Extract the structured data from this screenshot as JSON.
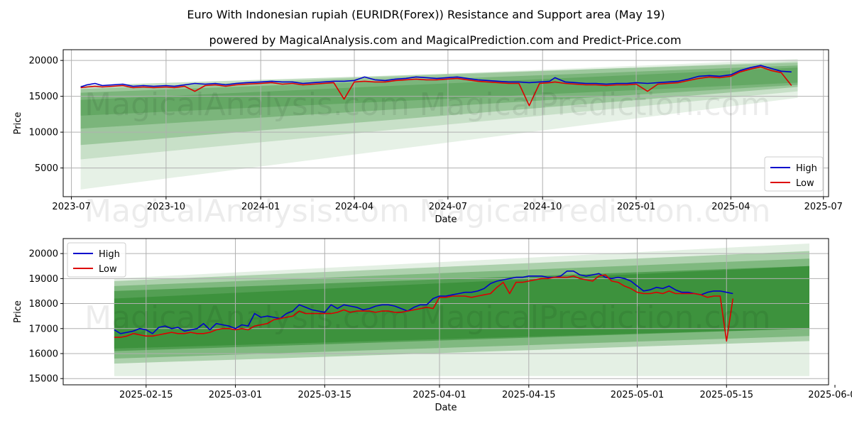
{
  "title": "Euro With Indonesian rupiah (EURIDR(Forex)) Resistance and Support area (May 19)",
  "subtitle": "powered by MagicalAnalysis.com and MagicalPrediction.com and Predict-Price.com",
  "watermarks": [
    "MagicalAnalysis.com",
    "MagicalPrediction.com"
  ],
  "colors": {
    "high": "#0000cc",
    "low": "#dd0000",
    "band": "#2e8b2e",
    "grid": "#b0b0b0"
  },
  "chart_data": [
    {
      "type": "line",
      "name": "overview",
      "xlabel": "Date",
      "ylabel": "Price",
      "xlim": [
        -8,
        736
      ],
      "ylim": [
        1000,
        21500
      ],
      "xtick_values": [
        0,
        92,
        184,
        275,
        366,
        458,
        549,
        641,
        731
      ],
      "xtick_labels": [
        "2023-07",
        "2023-10",
        "2024-01",
        "2024-04",
        "2024-07",
        "2024-10",
        "2025-01",
        "2025-04",
        "2025-07"
      ],
      "ytick_values": [
        5000,
        10000,
        15000,
        20000
      ],
      "ytick_labels": [
        "5000",
        "10000",
        "15000",
        "20000"
      ],
      "legend": {
        "position": "lower-right",
        "entries": [
          "High",
          "Low"
        ]
      },
      "band_x": [
        9,
        706
      ],
      "bands": [
        {
          "upper": [
            16000,
            20200
          ],
          "lower": [
            2000,
            14800
          ],
          "opacity": 0.12
        },
        {
          "upper": [
            16000,
            19900
          ],
          "lower": [
            6200,
            15700
          ],
          "opacity": 0.16
        },
        {
          "upper": [
            16500,
            19700
          ],
          "lower": [
            8200,
            16300
          ],
          "opacity": 0.28
        },
        {
          "upper": [
            15500,
            19300
          ],
          "lower": [
            10500,
            16600
          ],
          "opacity": 0.3
        },
        {
          "upper": [
            14500,
            19000
          ],
          "lower": [
            12300,
            16900
          ],
          "opacity": 0.3
        }
      ],
      "series": [
        {
          "name": "High",
          "x": [
            9,
            15,
            23,
            30,
            40,
            50,
            60,
            70,
            80,
            92,
            100,
            110,
            120,
            130,
            140,
            150,
            160,
            170,
            184,
            195,
            205,
            215,
            225,
            235,
            245,
            255,
            265,
            275,
            285,
            295,
            305,
            315,
            325,
            335,
            345,
            355,
            365,
            375,
            385,
            395,
            405,
            415,
            425,
            435,
            445,
            455,
            465,
            470,
            480,
            490,
            500,
            510,
            520,
            530,
            540,
            549,
            560,
            570,
            580,
            590,
            600,
            610,
            620,
            630,
            641,
            650,
            660,
            670,
            680,
            690,
            700
          ],
          "values": [
            16300,
            16600,
            16800,
            16500,
            16600,
            16700,
            16400,
            16500,
            16400,
            16500,
            16400,
            16600,
            16800,
            16700,
            16800,
            16600,
            16800,
            16900,
            17000,
            17100,
            17000,
            17000,
            16800,
            16900,
            17000,
            17100,
            17100,
            17200,
            17700,
            17300,
            17200,
            17400,
            17500,
            17700,
            17600,
            17500,
            17600,
            17700,
            17500,
            17300,
            17200,
            17100,
            17000,
            17000,
            16900,
            17000,
            17100,
            17600,
            17000,
            16900,
            16800,
            16800,
            16700,
            16800,
            16800,
            16900,
            16800,
            16900,
            17000,
            17100,
            17400,
            17800,
            17900,
            17800,
            18000,
            18600,
            19000,
            19300,
            18900,
            18500,
            18400
          ]
        },
        {
          "name": "Low",
          "x": [
            9,
            15,
            23,
            30,
            40,
            50,
            60,
            70,
            80,
            92,
            100,
            110,
            120,
            130,
            140,
            150,
            160,
            170,
            184,
            195,
            205,
            215,
            225,
            235,
            245,
            255,
            265,
            275,
            285,
            295,
            305,
            315,
            325,
            335,
            345,
            355,
            365,
            375,
            385,
            395,
            405,
            415,
            425,
            435,
            445,
            455,
            465,
            470,
            480,
            490,
            500,
            510,
            520,
            530,
            540,
            549,
            560,
            570,
            580,
            590,
            600,
            610,
            620,
            630,
            641,
            650,
            660,
            670,
            680,
            690,
            700
          ],
          "values": [
            16200,
            16300,
            16400,
            16300,
            16400,
            16500,
            16200,
            16300,
            16200,
            16300,
            16200,
            16400,
            15700,
            16500,
            16600,
            16400,
            16600,
            16700,
            16800,
            16900,
            16700,
            16800,
            16600,
            16700,
            16800,
            16900,
            14600,
            17000,
            17100,
            17000,
            17000,
            17200,
            17300,
            17400,
            17300,
            17300,
            17400,
            17500,
            17300,
            17100,
            17000,
            16900,
            16800,
            16800,
            13700,
            16800,
            16900,
            17000,
            16800,
            16700,
            16600,
            16600,
            16500,
            16600,
            16600,
            16700,
            15700,
            16700,
            16800,
            16900,
            17200,
            17500,
            17700,
            17600,
            17800,
            18400,
            18800,
            19100,
            18600,
            18300,
            16500
          ]
        }
      ]
    },
    {
      "type": "line",
      "name": "zoom",
      "xlabel": "Date",
      "ylabel": "Price",
      "xlim": [
        2,
        122
      ],
      "ylim": [
        14750,
        20600
      ],
      "xtick_values": [
        15,
        29,
        43,
        61,
        75,
        92,
        106,
        123
      ],
      "xtick_labels": [
        "2025-02-15",
        "2025-03-01",
        "2025-03-15",
        "2025-04-01",
        "2025-04-15",
        "2025-05-01",
        "2025-05-15",
        "2025-06-01"
      ],
      "ytick_values": [
        15000,
        16000,
        17000,
        18000,
        19000,
        20000
      ],
      "ytick_labels": [
        "15000",
        "16000",
        "17000",
        "18000",
        "19000",
        "20000"
      ],
      "legend": {
        "position": "upper-left",
        "entries": [
          "High",
          "Low"
        ]
      },
      "band_x": [
        10,
        119
      ],
      "bands": [
        {
          "upper": [
            19000,
            20400
          ],
          "lower": [
            15100,
            15100
          ],
          "opacity": 0.13
        },
        {
          "upper": [
            18900,
            20100
          ],
          "lower": [
            15600,
            16500
          ],
          "opacity": 0.3
        },
        {
          "upper": [
            18700,
            19800
          ],
          "lower": [
            15800,
            16700
          ],
          "opacity": 0.35
        },
        {
          "upper": [
            18500,
            19500
          ],
          "lower": [
            16100,
            17000
          ],
          "opacity": 0.55
        },
        {
          "upper": [
            18200,
            19500
          ],
          "lower": [
            16200,
            17000
          ],
          "opacity": 0.6
        }
      ],
      "series": [
        {
          "name": "High",
          "x": [
            10,
            11,
            12,
            13,
            14,
            15,
            16,
            17,
            18,
            19,
            20,
            21,
            22,
            23,
            24,
            25,
            26,
            27,
            28,
            29,
            30,
            31,
            32,
            33,
            34,
            35,
            36,
            37,
            38,
            39,
            40,
            41,
            42,
            43,
            44,
            45,
            46,
            47,
            48,
            49,
            50,
            51,
            52,
            53,
            54,
            55,
            56,
            57,
            58,
            59,
            60,
            61,
            62,
            63,
            64,
            65,
            66,
            67,
            68,
            69,
            70,
            71,
            72,
            73,
            74,
            75,
            76,
            77,
            78,
            79,
            80,
            81,
            82,
            83,
            84,
            85,
            86,
            87,
            88,
            89,
            90,
            91,
            92,
            93,
            94,
            95,
            96,
            97,
            98,
            99,
            100,
            101,
            102,
            103,
            104,
            105,
            106,
            107
          ],
          "values": [
            16950,
            16800,
            16850,
            16900,
            17000,
            16950,
            16800,
            17050,
            17100,
            17000,
            17050,
            16900,
            16950,
            17000,
            17200,
            16950,
            17200,
            17150,
            17100,
            17000,
            17150,
            17100,
            17600,
            17450,
            17500,
            17450,
            17400,
            17600,
            17700,
            17950,
            17850,
            17750,
            17700,
            17650,
            17950,
            17800,
            17950,
            17900,
            17850,
            17750,
            17800,
            17900,
            17950,
            17950,
            17900,
            17800,
            17700,
            17850,
            17950,
            17950,
            18200,
            18300,
            18300,
            18350,
            18400,
            18450,
            18450,
            18500,
            18600,
            18800,
            18900,
            18950,
            19000,
            19050,
            19050,
            19100,
            19100,
            19100,
            19050,
            19050,
            19100,
            19300,
            19300,
            19150,
            19100,
            19150,
            19200,
            19050,
            19000,
            19050,
            19000,
            18900,
            18700,
            18500,
            18550,
            18650,
            18600,
            18700,
            18550,
            18450,
            18450,
            18400,
            18350,
            18450,
            18500,
            18500,
            18450,
            18400
          ]
        },
        {
          "name": "Low",
          "x": [
            10,
            11,
            12,
            13,
            14,
            15,
            16,
            17,
            18,
            19,
            20,
            21,
            22,
            23,
            24,
            25,
            26,
            27,
            28,
            29,
            30,
            31,
            32,
            33,
            34,
            35,
            36,
            37,
            38,
            39,
            40,
            41,
            42,
            43,
            44,
            45,
            46,
            47,
            48,
            49,
            50,
            51,
            52,
            53,
            54,
            55,
            56,
            57,
            58,
            59,
            60,
            61,
            62,
            63,
            64,
            65,
            66,
            67,
            68,
            69,
            70,
            71,
            72,
            73,
            74,
            75,
            76,
            77,
            78,
            79,
            80,
            81,
            82,
            83,
            84,
            85,
            86,
            87,
            88,
            89,
            90,
            91,
            92,
            93,
            94,
            95,
            96,
            97,
            98,
            99,
            100,
            101,
            102,
            103,
            104,
            105,
            106,
            107
          ],
          "values": [
            16650,
            16650,
            16700,
            16800,
            16750,
            16700,
            16700,
            16750,
            16800,
            16850,
            16800,
            16800,
            16850,
            16800,
            16800,
            16850,
            16950,
            17000,
            17000,
            16950,
            17000,
            16950,
            17100,
            17150,
            17200,
            17350,
            17400,
            17450,
            17500,
            17700,
            17600,
            17600,
            17600,
            17600,
            17600,
            17650,
            17750,
            17650,
            17700,
            17700,
            17700,
            17650,
            17700,
            17700,
            17650,
            17650,
            17700,
            17750,
            17800,
            17850,
            17800,
            18250,
            18250,
            18300,
            18300,
            18300,
            18250,
            18300,
            18350,
            18400,
            18650,
            18850,
            18400,
            18850,
            18850,
            18900,
            18950,
            19000,
            19000,
            19050,
            19050,
            19050,
            19100,
            19000,
            18950,
            18900,
            19100,
            19150,
            18900,
            18850,
            18700,
            18600,
            18450,
            18400,
            18400,
            18450,
            18400,
            18500,
            18400,
            18400,
            18400,
            18400,
            18350,
            18250,
            18300,
            18300,
            16500,
            18200
          ]
        }
      ]
    }
  ]
}
